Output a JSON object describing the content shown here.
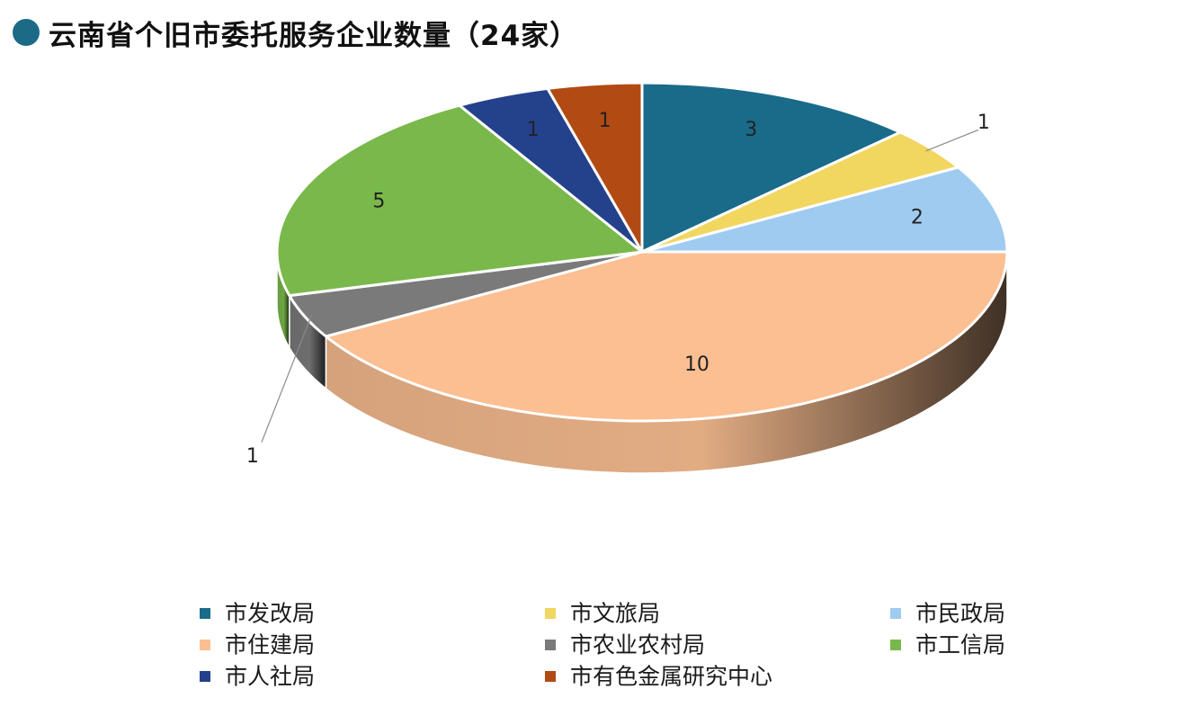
{
  "title": "云南省个旧市委托服务企业数量（24家）",
  "colors": {
    "title_dot": "#1b6a86"
  },
  "chart_data": {
    "type": "pie",
    "title": "云南省个旧市委托服务企业数量（24家）",
    "legend_position": "bottom",
    "slices": [
      {
        "label": "市发改局",
        "value": 3,
        "color": "#1a6b8a"
      },
      {
        "label": "市文旅局",
        "value": 1,
        "color": "#f1d660"
      },
      {
        "label": "市民政局",
        "value": 2,
        "color": "#9fcbf1"
      },
      {
        "label": "市住建局",
        "value": 10,
        "color": "#fbbf92"
      },
      {
        "label": "市农业农村局",
        "value": 1,
        "color": "#7a7a7a"
      },
      {
        "label": "市工信局",
        "value": 5,
        "color": "#79b84a"
      },
      {
        "label": "市人社局",
        "value": 1,
        "color": "#24418c"
      },
      {
        "label": "市有色金属研究中心",
        "value": 1,
        "color": "#b24a13"
      }
    ]
  }
}
